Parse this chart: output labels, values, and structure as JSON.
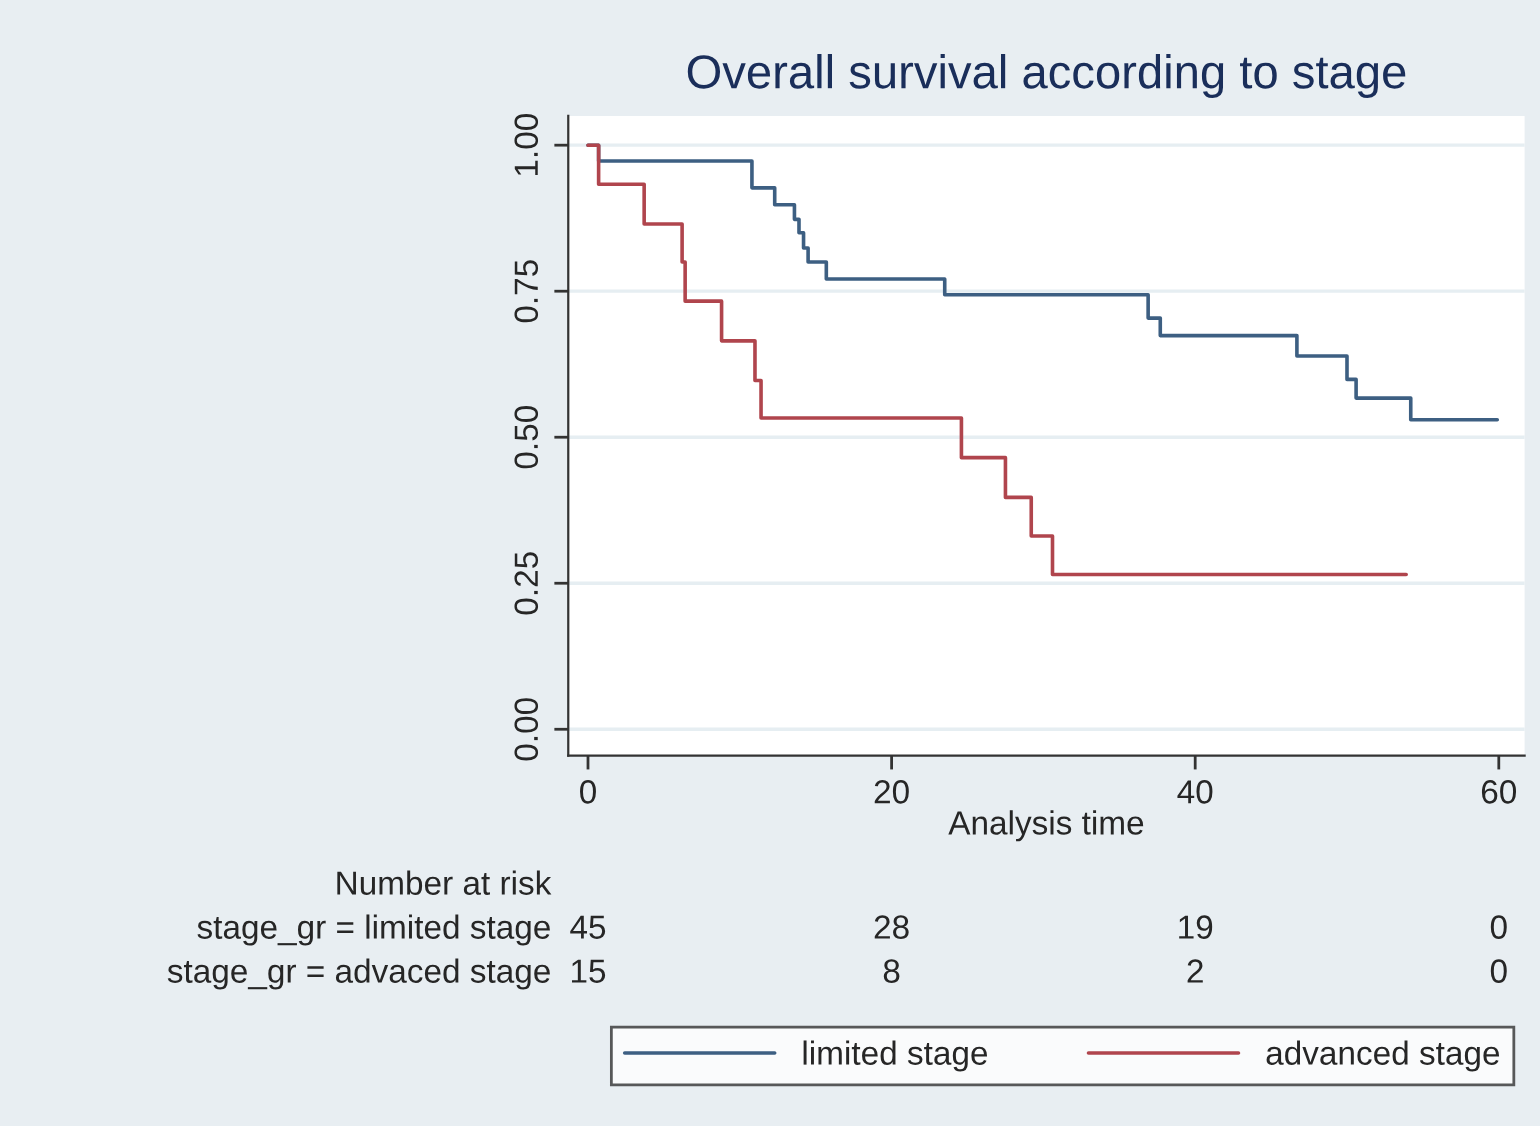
{
  "chart_data": {
    "type": "step",
    "title": "Overall survival according to stage",
    "xlabel": "Analysis time",
    "xlim": [
      -1.3,
      61.7
    ],
    "xticks": [
      0,
      20,
      40,
      60
    ],
    "ylim": [
      -0.045,
      1.05
    ],
    "yticks": [
      {
        "value": 0,
        "label": "0.00"
      },
      {
        "value": 0.25,
        "label": "0.25"
      },
      {
        "value": 0.5,
        "label": "0.50"
      },
      {
        "value": 0.75,
        "label": "0.75"
      },
      {
        "value": 1,
        "label": "1.00"
      }
    ],
    "grid": "y",
    "legend": "bottom",
    "line_style": "solid",
    "marker": "none",
    "series": [
      {
        "name": "limited stage",
        "color": "#3d5f82",
        "x": [
          0,
          0.7,
          10.8,
          12.3,
          13.6,
          13.9,
          14.2,
          14.5,
          15.7,
          23.5,
          36.9,
          37.7,
          46.7,
          50.0,
          50.6,
          54.2,
          59.9
        ],
        "values": [
          1.0,
          0.973,
          0.927,
          0.898,
          0.873,
          0.85,
          0.824,
          0.8,
          0.771,
          0.744,
          0.704,
          0.674,
          0.639,
          0.599,
          0.567,
          0.53,
          0.53
        ]
      },
      {
        "name": "advanced stage",
        "color": "#b0454d",
        "x": [
          0,
          0.7,
          3.7,
          6.2,
          6.4,
          8.8,
          11.0,
          11.4,
          24.6,
          27.5,
          29.2,
          30.6,
          53.9
        ],
        "values": [
          1.0,
          0.933,
          0.865,
          0.8,
          0.733,
          0.665,
          0.597,
          0.533,
          0.465,
          0.397,
          0.331,
          0.265,
          0.265
        ]
      }
    ],
    "annotations": [
      "Number at risk",
      "stage_gr = limited stage",
      "45",
      "28",
      "19",
      "0",
      "stage_gr = advaced stage",
      "15",
      "8",
      "2",
      "0"
    ]
  }
}
